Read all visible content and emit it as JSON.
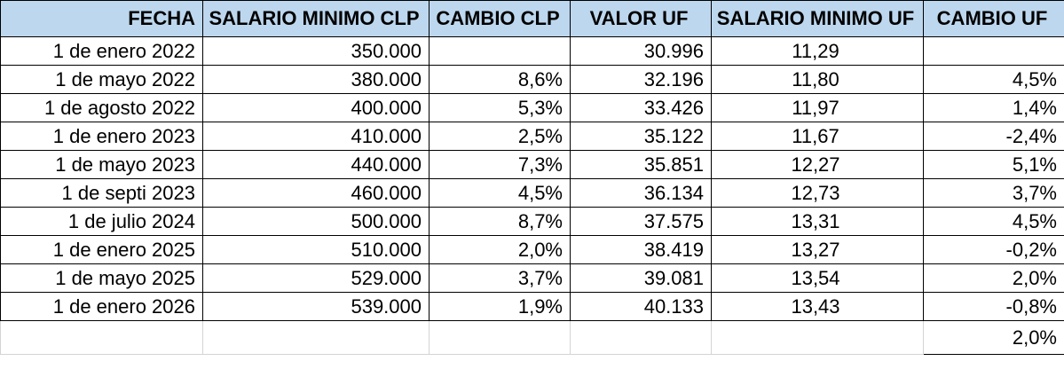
{
  "headers": {
    "fecha": "FECHA",
    "salario_clp": "SALARIO MINIMO CLP",
    "cambio_clp": "CAMBIO  CLP",
    "valor_uf": "VALOR UF",
    "salario_uf": "SALARIO MINIMO UF",
    "cambio_uf": "CAMBIO  UF"
  },
  "rows": [
    {
      "fecha": "1 de enero 2022",
      "salario_clp": "350.000",
      "cambio_clp": "",
      "valor_uf": "30.996",
      "salario_uf": "11,29",
      "cambio_uf": ""
    },
    {
      "fecha": "1 de mayo 2022",
      "salario_clp": "380.000",
      "cambio_clp": "8,6%",
      "valor_uf": "32.196",
      "salario_uf": "11,80",
      "cambio_uf": "4,5%"
    },
    {
      "fecha": "1 de agosto 2022",
      "salario_clp": "400.000",
      "cambio_clp": "5,3%",
      "valor_uf": "33.426",
      "salario_uf": "11,97",
      "cambio_uf": "1,4%"
    },
    {
      "fecha": "1 de enero 2023",
      "salario_clp": "410.000",
      "cambio_clp": "2,5%",
      "valor_uf": "35.122",
      "salario_uf": "11,67",
      "cambio_uf": "-2,4%"
    },
    {
      "fecha": "1 de mayo 2023",
      "salario_clp": "440.000",
      "cambio_clp": "7,3%",
      "valor_uf": "35.851",
      "salario_uf": "12,27",
      "cambio_uf": "5,1%"
    },
    {
      "fecha": "1 de septi 2023",
      "salario_clp": "460.000",
      "cambio_clp": "4,5%",
      "valor_uf": "36.134",
      "salario_uf": "12,73",
      "cambio_uf": "3,7%"
    },
    {
      "fecha": "1 de julio 2024",
      "salario_clp": "500.000",
      "cambio_clp": "8,7%",
      "valor_uf": "37.575",
      "salario_uf": "13,31",
      "cambio_uf": "4,5%"
    },
    {
      "fecha": "1 de enero 2025",
      "salario_clp": "510.000",
      "cambio_clp": "2,0%",
      "valor_uf": "38.419",
      "salario_uf": "13,27",
      "cambio_uf": "-0,2%"
    },
    {
      "fecha": "1 de mayo 2025",
      "salario_clp": "529.000",
      "cambio_clp": "3,7%",
      "valor_uf": "39.081",
      "salario_uf": "13,54",
      "cambio_uf": "2,0%"
    },
    {
      "fecha": "1 de enero 2026",
      "salario_clp": "539.000",
      "cambio_clp": "1,9%",
      "valor_uf": "40.133",
      "salario_uf": "13,43",
      "cambio_uf": "-0,8%"
    }
  ],
  "footer": {
    "cambio_uf_promedio": "2,0%"
  },
  "colors": {
    "header_fill": "#bdd7ee",
    "border": "#000000",
    "gridline": "#d4d4d4"
  }
}
